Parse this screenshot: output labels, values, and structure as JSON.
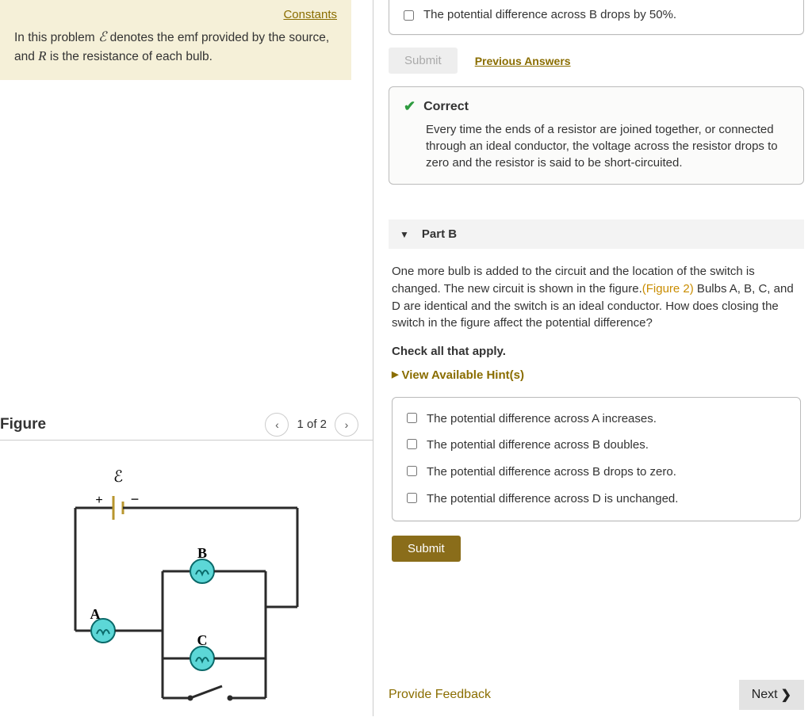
{
  "intro": {
    "constants_label": "Constants",
    "text_before_E": "In this problem ",
    "E": "ℰ",
    "text_mid": " denotes the emf provided by the source, and ",
    "R": "R",
    "text_after": " is the resistance of each bulb."
  },
  "figure": {
    "title": "Figure",
    "pager_text": "1 of 2",
    "prev": "‹",
    "next": "›",
    "diagram": {
      "emf_label": "ℰ",
      "plus": "+",
      "minus": "−",
      "bulb_A": "A",
      "bulb_B": "B",
      "bulb_C": "C",
      "wire_color": "#2a2a2a",
      "bulb_fill": "#5cd7d7",
      "bulb_stroke": "#0a6a6a",
      "emf_color": "#b8962e"
    }
  },
  "partA_tail": {
    "option_text": "The potential difference across B drops by 50%.",
    "submit": "Submit",
    "prev_answers": "Previous Answers",
    "correct_label": "Correct",
    "correct_body": "Every time the ends of a resistor are joined together, or connected through an ideal conductor, the voltage across the resistor drops to zero and the resistor is said to be short-circuited."
  },
  "partB": {
    "header": "Part B",
    "body_1": "One more bulb is added to the circuit and the location of the switch is changed. The new circuit is shown in the figure.",
    "figure_ref": "(Figure 2)",
    "body_2": " Bulbs A, B, C, and D are identical and the switch is an ideal conductor. How does closing the switch in the figure affect the potential difference?",
    "check_all": "Check all that apply.",
    "hints": "View Available Hint(s)",
    "options": [
      "The potential difference across A increases.",
      "The potential difference across B doubles.",
      "The potential difference across B drops to zero.",
      "The potential difference across D is unchanged."
    ],
    "submit": "Submit"
  },
  "footer": {
    "feedback": "Provide Feedback",
    "next": "Next"
  }
}
